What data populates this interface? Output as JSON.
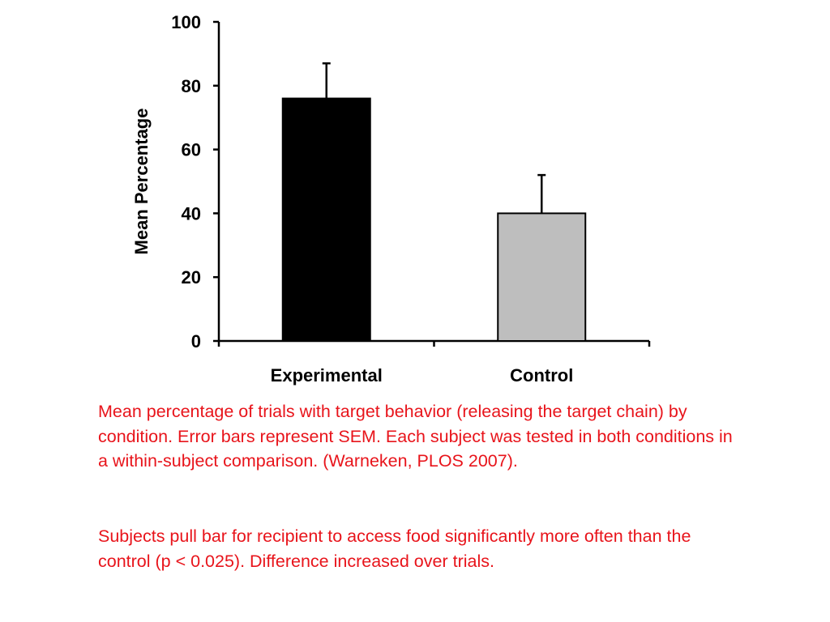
{
  "chart_data": {
    "type": "bar",
    "categories": [
      "Experimental",
      "Control"
    ],
    "values": [
      76,
      40
    ],
    "error_upper": [
      87,
      52
    ],
    "bar_colors": [
      "#000000",
      "#bebebe"
    ],
    "title": "",
    "xlabel": "",
    "ylabel": "Mean Percentage",
    "ylim": [
      0,
      100
    ],
    "yticks": [
      0,
      20,
      40,
      60,
      80,
      100
    ],
    "grid": false,
    "legend": "none"
  },
  "captions": {
    "paragraph_1": "Mean percentage of trials with target behavior (releasing the target chain) by condition. Error bars represent SEM. Each subject was tested in both conditions in a within-subject comparison. (Warneken, PLOS 2007).",
    "paragraph_2": "Subjects pull bar for recipient to access food significantly more often than the control (p < 0.025).  Difference increased over trials."
  },
  "colors": {
    "caption_text": "#e8141b",
    "axis": "#000000"
  }
}
